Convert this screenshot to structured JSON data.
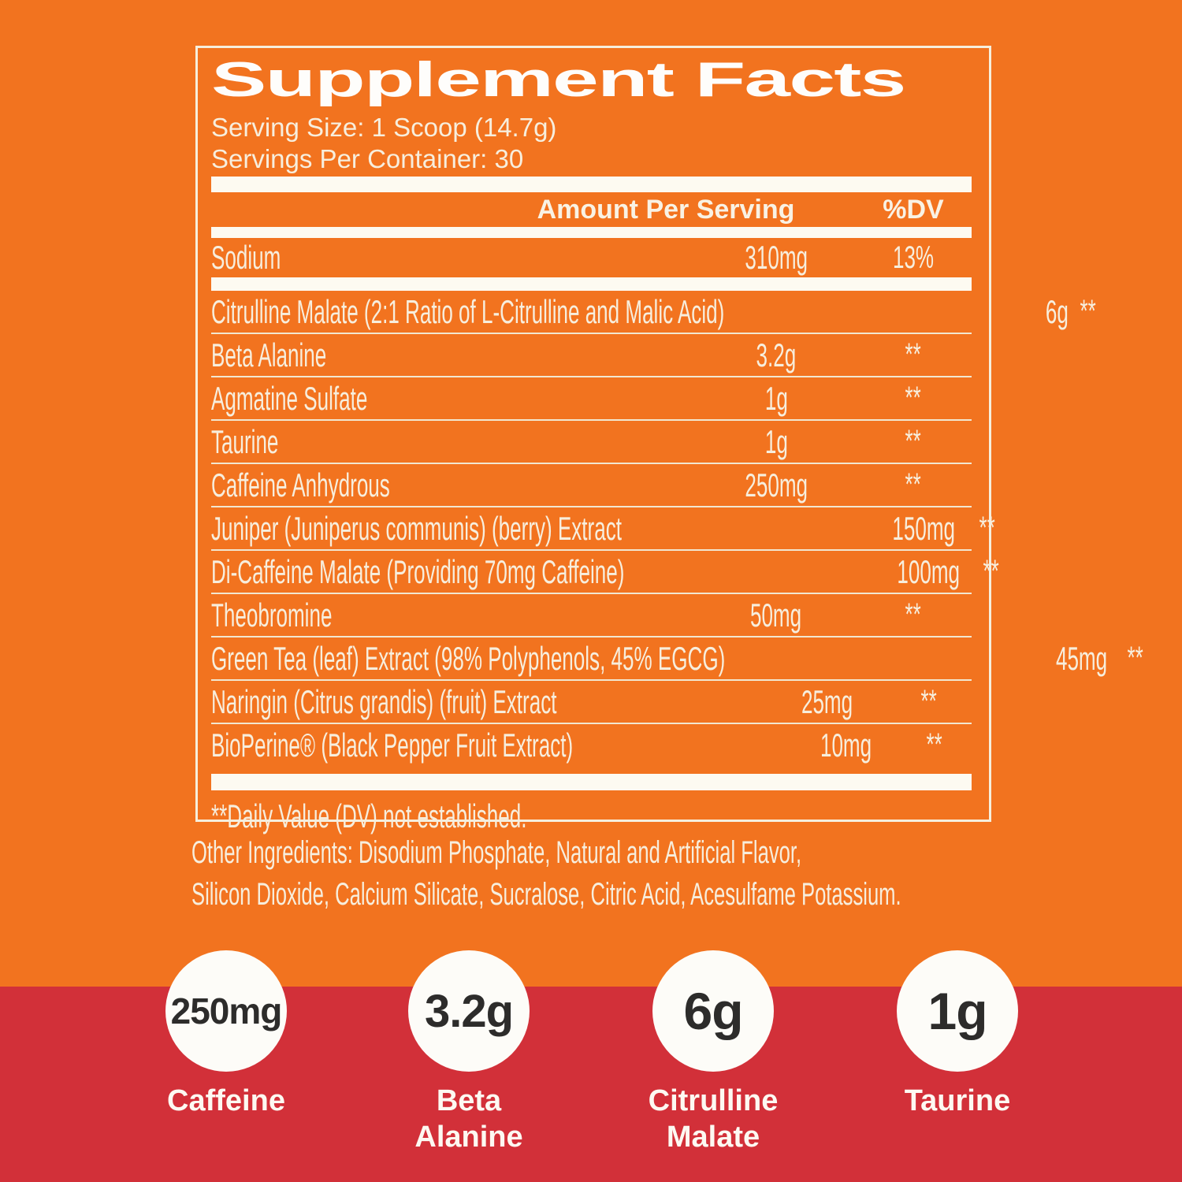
{
  "colors": {
    "background_orange": "#f2731f",
    "band_red": "#d23039",
    "panel_text_cream": "#f7eedd",
    "panel_border_cream": "#f6eedc",
    "bar_white": "#fdfaf1",
    "circle_white": "#fdfcf8",
    "circle_text_dark": "#2d2c2b"
  },
  "panel": {
    "title": "Supplement Facts",
    "serving_size": "Serving Size: 1 Scoop (14.7g)",
    "servings_per_container": "Servings Per Container: 30",
    "header": {
      "amount": "Amount Per Serving",
      "dv": "%DV"
    },
    "sodium": {
      "name": "Sodium",
      "amount": "310mg",
      "dv": "13%"
    },
    "rows": [
      {
        "name": "Citrulline Malate (2:1 Ratio of L-Citrulline and Malic Acid)",
        "amount": "6g",
        "dv": "**"
      },
      {
        "name": "Beta Alanine",
        "amount": "3.2g",
        "dv": "**"
      },
      {
        "name": "Agmatine Sulfate",
        "amount": "1g",
        "dv": "**"
      },
      {
        "name": "Taurine",
        "amount": "1g",
        "dv": "**"
      },
      {
        "name": "Caffeine Anhydrous",
        "amount": "250mg",
        "dv": "**"
      },
      {
        "name": "Juniper (Juniperus communis) (berry) Extract",
        "amount": "150mg",
        "dv": "**"
      },
      {
        "name": "Di-Caffeine Malate (Providing 70mg Caffeine)",
        "amount": "100mg",
        "dv": "**"
      },
      {
        "name": "Theobromine",
        "amount": "50mg",
        "dv": "**"
      },
      {
        "name": "Green Tea (leaf) Extract (98% Polyphenols, 45% EGCG)",
        "amount": "45mg",
        "dv": "**"
      },
      {
        "name": "Naringin (Citrus grandis) (fruit) Extract",
        "amount": "25mg",
        "dv": "**"
      },
      {
        "name": "BioPerine® (Black Pepper Fruit Extract)",
        "amount": "10mg",
        "dv": "**"
      }
    ],
    "footnote": "**Daily Value (DV) not established."
  },
  "other_ingredients": {
    "line1": "Other Ingredients: Disodium Phosphate, Natural and Artificial Flavor,",
    "line2": "Silicon Dioxide, Calcium Silicate, Sucralose, Citric Acid, Acesulfame Potassium."
  },
  "highlights": [
    {
      "value": "250mg",
      "label1": "Caffeine",
      "label2": ""
    },
    {
      "value": "3.2g",
      "label1": "Beta",
      "label2": "Alanine"
    },
    {
      "value": "6g",
      "label1": "Citrulline",
      "label2": "Malate"
    },
    {
      "value": "1g",
      "label1": "Taurine",
      "label2": ""
    }
  ]
}
